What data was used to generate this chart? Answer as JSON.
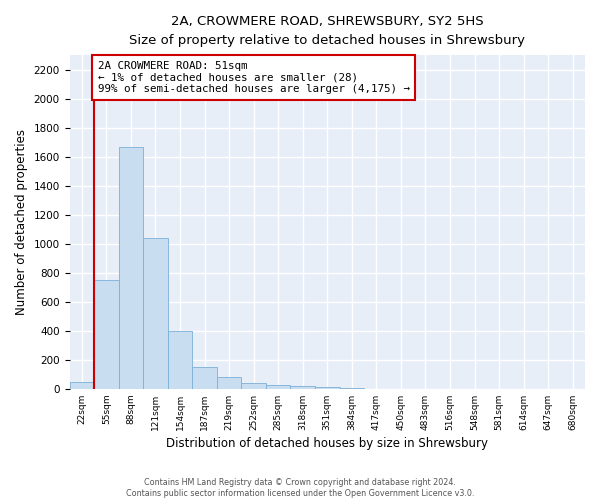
{
  "title": "2A, CROWMERE ROAD, SHREWSBURY, SY2 5HS",
  "subtitle": "Size of property relative to detached houses in Shrewsbury",
  "xlabel": "Distribution of detached houses by size in Shrewsbury",
  "ylabel": "Number of detached properties",
  "bar_color": "#c9ddf0",
  "bar_edge_color": "#7ab0d8",
  "annotation_box_color": "#cc0000",
  "property_line_color": "#cc0000",
  "bin_labels": [
    "22sqm",
    "55sqm",
    "88sqm",
    "121sqm",
    "154sqm",
    "187sqm",
    "219sqm",
    "252sqm",
    "285sqm",
    "318sqm",
    "351sqm",
    "384sqm",
    "417sqm",
    "450sqm",
    "483sqm",
    "516sqm",
    "548sqm",
    "581sqm",
    "614sqm",
    "647sqm",
    "680sqm"
  ],
  "bar_heights": [
    50,
    750,
    1670,
    1040,
    400,
    150,
    80,
    40,
    25,
    20,
    10,
    5,
    2,
    0,
    0,
    0,
    0,
    0,
    0,
    0
  ],
  "property_line_bin": 1.0,
  "annotation_text_line1": "2A CROWMERE ROAD: 51sqm",
  "annotation_text_line2": "← 1% of detached houses are smaller (28)",
  "annotation_text_line3": "99% of semi-detached houses are larger (4,175) →",
  "ylim": [
    0,
    2300
  ],
  "yticks": [
    0,
    200,
    400,
    600,
    800,
    1000,
    1200,
    1400,
    1600,
    1800,
    2000,
    2200
  ],
  "footer_line1": "Contains HM Land Registry data © Crown copyright and database right 2024.",
  "footer_line2": "Contains public sector information licensed under the Open Government Licence v3.0.",
  "bg_color": "#ffffff",
  "plot_bg_color": "#e8eef8"
}
